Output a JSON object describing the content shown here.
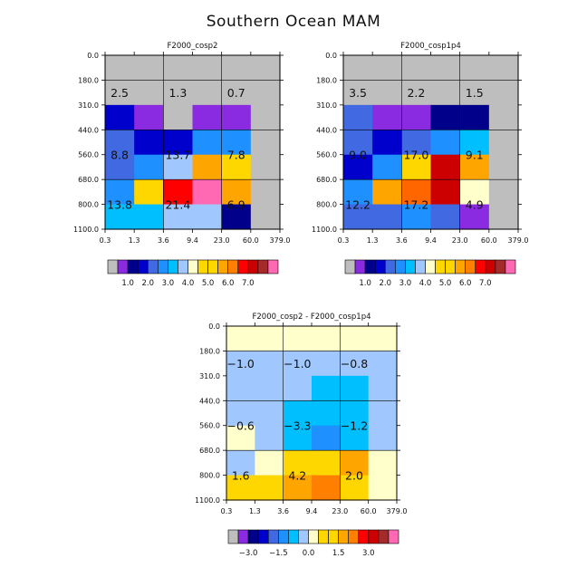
{
  "title": "Southern Ocean MAM",
  "shared": {
    "y_ticks": [
      "0.0",
      "180.0",
      "310.0",
      "440.0",
      "560.0",
      "680.0",
      "800.0",
      "1100.0"
    ],
    "x_ticks": [
      "0.3",
      "1.3",
      "3.6",
      "9.4",
      "23.0",
      "60.0",
      "379.0"
    ]
  },
  "chart_data": [
    {
      "type": "heatmap",
      "title": "F2000_cosp2",
      "grid": true,
      "note": "Joint histogram; rows are pressure bins (top to bottom), columns are tau bins (left to right). Cell colors follow the colorbar; null = missing (grey).",
      "cells": [
        [
          "#bebebe",
          "#bebebe",
          "#bebebe",
          "#bebebe",
          "#bebebe",
          "#bebebe"
        ],
        [
          "#bebebe",
          "#bebebe",
          "#bebebe",
          "#bebebe",
          "#bebebe",
          "#bebebe"
        ],
        [
          "#0000cd",
          "#8a2be2",
          "#bebebe",
          "#8a2be2",
          "#8a2be2",
          "#bebebe"
        ],
        [
          "#4169e1",
          "#0000cd",
          "#0000cd",
          "#1e90ff",
          "#1e90ff",
          "#bebebe"
        ],
        [
          "#4169e1",
          "#1e90ff",
          "#a0c8ff",
          "#ffa500",
          "#ffd700",
          "#bebebe"
        ],
        [
          "#1e90ff",
          "#ffd700",
          "#ff0000",
          "#ff69b4",
          "#ffa500",
          "#bebebe"
        ],
        [
          "#00bfff",
          "#00bfff",
          "#a0c8ff",
          "#a0c8ff",
          "#00008b",
          "#bebebe"
        ]
      ],
      "annotations": [
        {
          "label": "2.5",
          "col": 0.5,
          "row": 1.5
        },
        {
          "label": "1.3",
          "col": 2.5,
          "row": 1.5
        },
        {
          "label": "0.7",
          "col": 4.5,
          "row": 1.5
        },
        {
          "label": "8.8",
          "col": 0.5,
          "row": 4.0
        },
        {
          "label": "13.7",
          "col": 2.5,
          "row": 4.0
        },
        {
          "label": "7.8",
          "col": 4.5,
          "row": 4.0
        },
        {
          "label": "13.8",
          "col": 0.5,
          "row": 6.0
        },
        {
          "label": "21.4",
          "col": 2.5,
          "row": 6.0
        },
        {
          "label": "6.9",
          "col": 4.5,
          "row": 6.0
        }
      ]
    },
    {
      "type": "heatmap",
      "title": "F2000_cosp1p4",
      "grid": true,
      "cells": [
        [
          "#bebebe",
          "#bebebe",
          "#bebebe",
          "#bebebe",
          "#bebebe",
          "#bebebe"
        ],
        [
          "#bebebe",
          "#bebebe",
          "#bebebe",
          "#bebebe",
          "#bebebe",
          "#bebebe"
        ],
        [
          "#4169e1",
          "#8a2be2",
          "#8a2be2",
          "#00008b",
          "#00008b",
          "#bebebe"
        ],
        [
          "#4169e1",
          "#0000cd",
          "#4169e1",
          "#1e90ff",
          "#00bfff",
          "#bebebe"
        ],
        [
          "#0000cd",
          "#1e90ff",
          "#ffd700",
          "#cc0000",
          "#ffa500",
          "#bebebe"
        ],
        [
          "#1e90ff",
          "#ffa500",
          "#ff6600",
          "#cc0000",
          "#ffffcc",
          "#bebebe"
        ],
        [
          "#4169e1",
          "#4169e1",
          "#1e90ff",
          "#4169e1",
          "#8a2be2",
          "#bebebe"
        ]
      ],
      "annotations": [
        {
          "label": "3.5",
          "col": 0.5,
          "row": 1.5
        },
        {
          "label": "2.2",
          "col": 2.5,
          "row": 1.5
        },
        {
          "label": "1.5",
          "col": 4.5,
          "row": 1.5
        },
        {
          "label": "9.0",
          "col": 0.5,
          "row": 4.0
        },
        {
          "label": "17.0",
          "col": 2.5,
          "row": 4.0
        },
        {
          "label": "9.1",
          "col": 4.5,
          "row": 4.0
        },
        {
          "label": "12.2",
          "col": 0.5,
          "row": 6.0
        },
        {
          "label": "17.2",
          "col": 2.5,
          "row": 6.0
        },
        {
          "label": "4.9",
          "col": 4.5,
          "row": 6.0
        }
      ]
    },
    {
      "type": "heatmap",
      "title": "F2000_cosp2 - F2000_cosp1p4",
      "grid": true,
      "cells": [
        [
          "#ffffcc",
          "#ffffcc",
          "#ffffcc",
          "#ffffcc",
          "#ffffcc",
          "#ffffcc"
        ],
        [
          "#a0c8ff",
          "#a0c8ff",
          "#a0c8ff",
          "#a0c8ff",
          "#a0c8ff",
          "#a0c8ff"
        ],
        [
          "#a0c8ff",
          "#a0c8ff",
          "#a0c8ff",
          "#00bfff",
          "#00bfff",
          "#a0c8ff"
        ],
        [
          "#a0c8ff",
          "#a0c8ff",
          "#00bfff",
          "#00bfff",
          "#00bfff",
          "#a0c8ff"
        ],
        [
          "#ffffcc",
          "#a0c8ff",
          "#00bfff",
          "#1e90ff",
          "#00bfff",
          "#a0c8ff"
        ],
        [
          "#a0c8ff",
          "#ffffcc",
          "#ffd700",
          "#ffd700",
          "#ffa500",
          "#ffffcc"
        ],
        [
          "#ffd700",
          "#ffd700",
          "#ffa500",
          "#ff7f00",
          "#ffd700",
          "#ffffcc"
        ]
      ],
      "annotations": [
        {
          "label": "-1.0",
          "col": 0.5,
          "row": 1.5
        },
        {
          "label": "-1.0",
          "col": 2.5,
          "row": 1.5
        },
        {
          "label": "-0.8",
          "col": 4.5,
          "row": 1.5
        },
        {
          "label": "-0.6",
          "col": 0.5,
          "row": 4.0
        },
        {
          "label": "-3.3",
          "col": 2.5,
          "row": 4.0
        },
        {
          "label": "-1.2",
          "col": 4.5,
          "row": 4.0
        },
        {
          "label": "1.6",
          "col": 0.5,
          "row": 6.0
        },
        {
          "label": "4.2",
          "col": 2.5,
          "row": 6.0
        },
        {
          "label": "2.0",
          "col": 4.5,
          "row": 6.0
        }
      ]
    }
  ],
  "colorbars": [
    {
      "colors": [
        "#bebebe",
        "#8a2be2",
        "#00008b",
        "#0000cd",
        "#4169e1",
        "#1e90ff",
        "#00bfff",
        "#a0c8ff",
        "#ffffcc",
        "#ffd700",
        "#ffd700",
        "#ffa500",
        "#ff7f00",
        "#ff0000",
        "#cc0000",
        "#a52a2a",
        "#ff69b4"
      ],
      "labels": [
        "1.0",
        "2.0",
        "3.0",
        "4.0",
        "5.0",
        "6.0",
        "7.0"
      ],
      "label_boundaries": [
        2,
        4,
        6,
        8,
        10,
        12,
        14
      ]
    },
    {
      "colors": [
        "#bebebe",
        "#8a2be2",
        "#00008b",
        "#0000cd",
        "#4169e1",
        "#1e90ff",
        "#00bfff",
        "#a0c8ff",
        "#ffffcc",
        "#ffd700",
        "#ffd700",
        "#ffa500",
        "#ff7f00",
        "#ff0000",
        "#cc0000",
        "#a52a2a",
        "#ff69b4"
      ],
      "labels": [
        "1.0",
        "2.0",
        "3.0",
        "4.0",
        "5.0",
        "6.0",
        "7.0"
      ],
      "label_boundaries": [
        2,
        4,
        6,
        8,
        10,
        12,
        14
      ]
    },
    {
      "colors": [
        "#bebebe",
        "#8a2be2",
        "#00008b",
        "#0000cd",
        "#4169e1",
        "#1e90ff",
        "#00bfff",
        "#a0c8ff",
        "#ffffcc",
        "#ffd700",
        "#ffd700",
        "#ffa500",
        "#ff7f00",
        "#ff0000",
        "#cc0000",
        "#a52a2a",
        "#ff69b4"
      ],
      "labels": [
        "-3.0",
        "-1.5",
        "0.0",
        "1.5",
        "3.0"
      ],
      "label_boundaries": [
        2,
        5,
        8,
        11,
        14
      ]
    }
  ]
}
